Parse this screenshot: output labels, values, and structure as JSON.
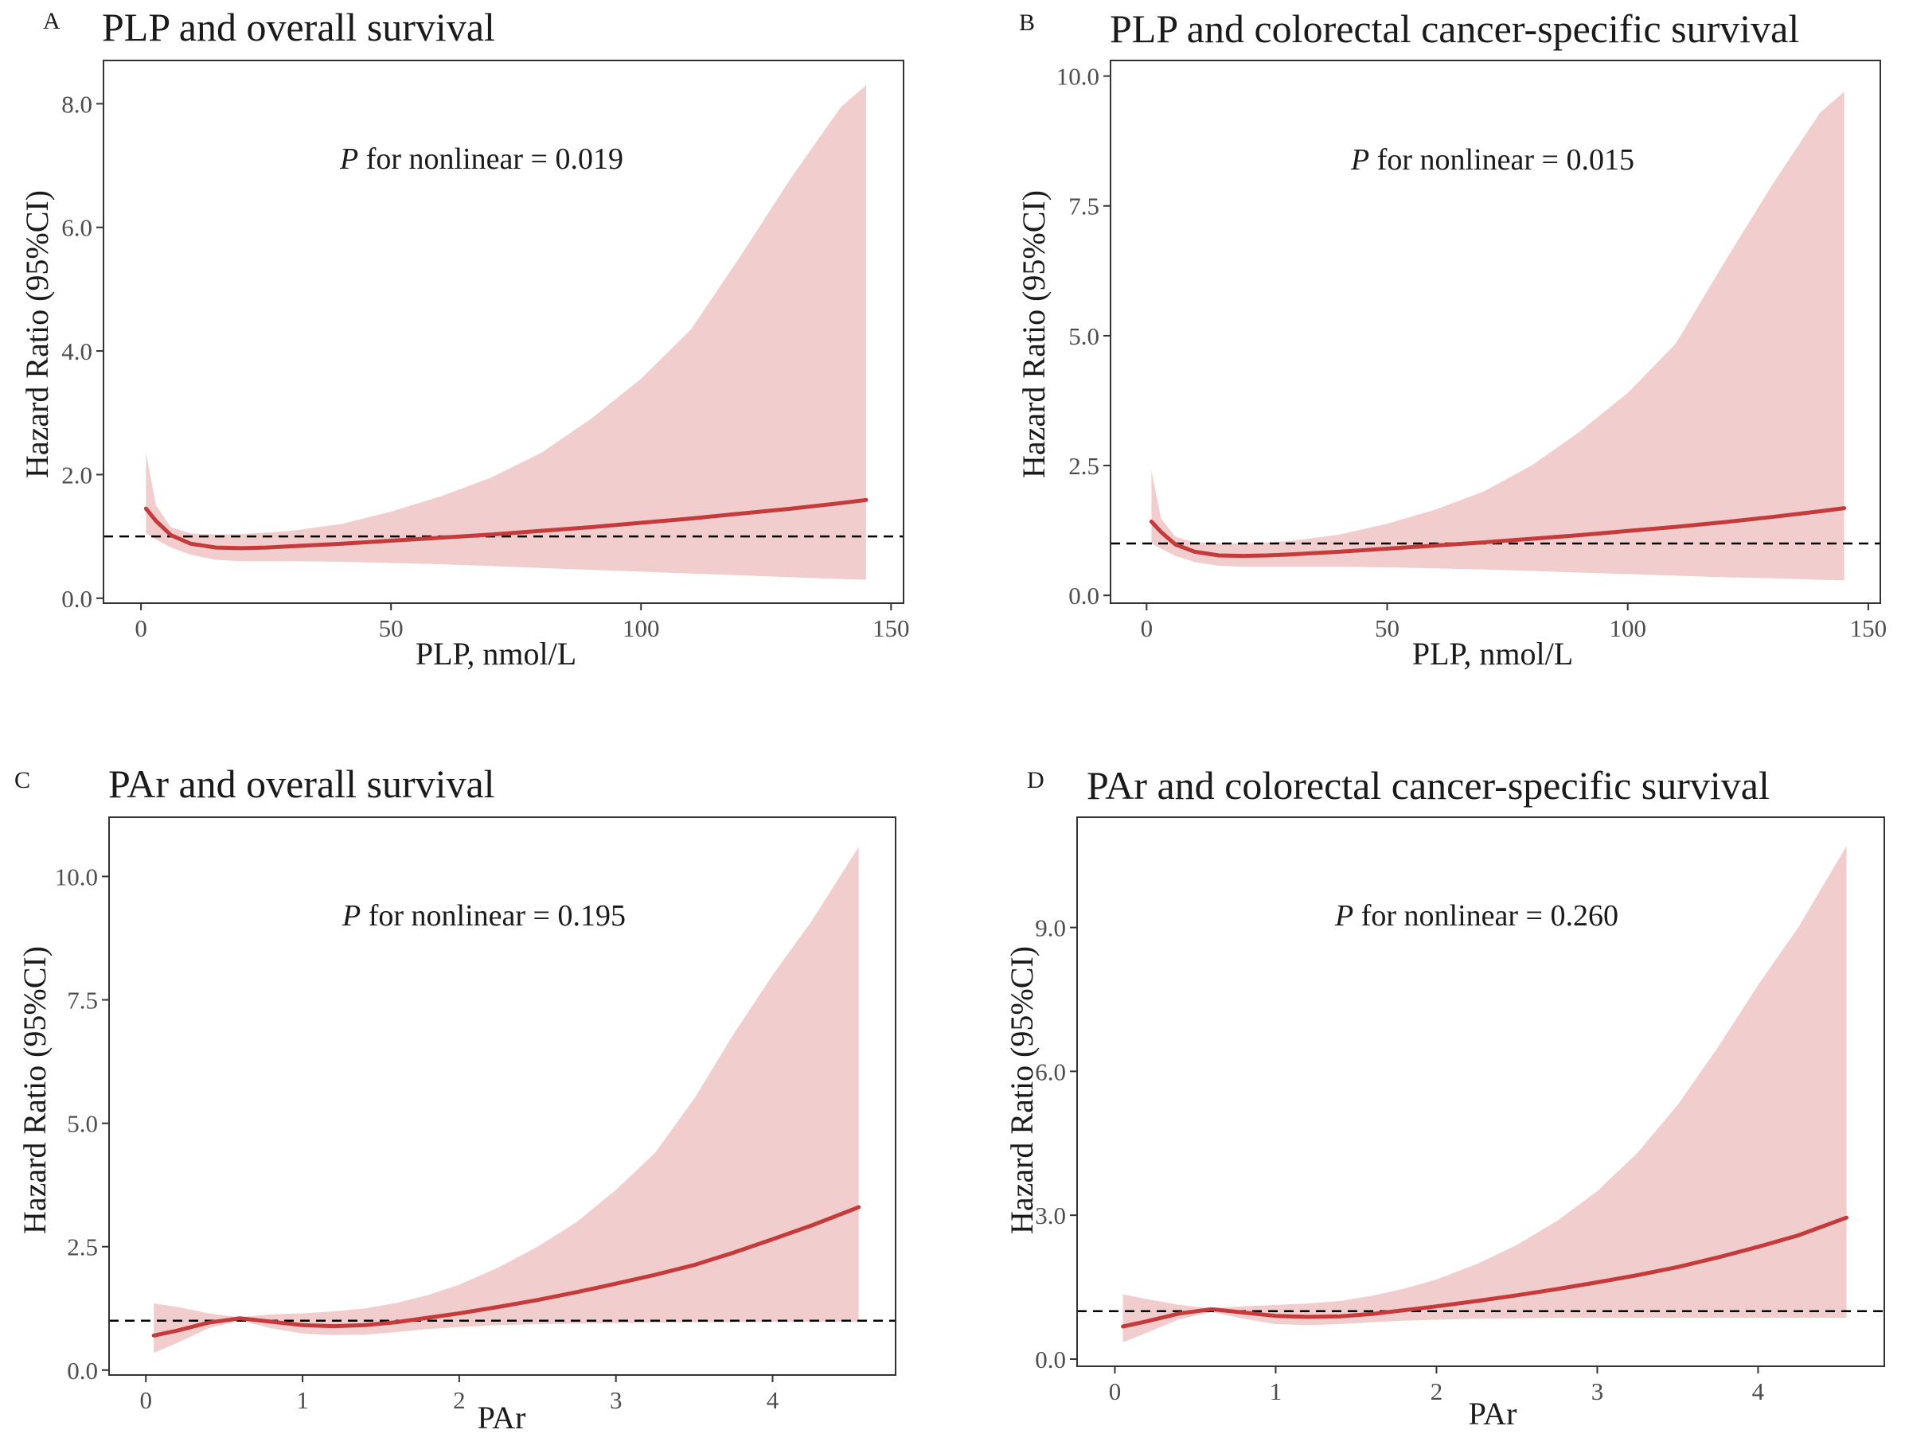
{
  "chart_data": [
    {
      "type": "line",
      "letter": "A",
      "title": "PLP and overall survival",
      "xlabel": "PLP, nmol/L",
      "ylabel": "Hazard Ratio (95%CI)",
      "xlim": [
        -7.5,
        152.5
      ],
      "ylim": [
        -0.08,
        8.7
      ],
      "xticks": [
        0,
        50,
        100,
        150
      ],
      "xtick_labels": [
        "0",
        "50",
        "100",
        "150"
      ],
      "yticks": [
        0,
        2,
        4,
        6,
        8
      ],
      "ytick_labels": [
        "0.0",
        "2.0",
        "4.0",
        "6.0",
        "8.0"
      ],
      "reference_line": 1.0,
      "annotation": {
        "p": "P",
        "text": " for nonlinear = 0.019"
      },
      "series": [
        {
          "name": "HR",
          "x": [
            1,
            3,
            6,
            10,
            15,
            20,
            25,
            30,
            40,
            50,
            60,
            70,
            80,
            90,
            100,
            110,
            120,
            130,
            140,
            145
          ],
          "y": [
            1.45,
            1.25,
            1.02,
            0.88,
            0.82,
            0.81,
            0.82,
            0.84,
            0.88,
            0.93,
            0.98,
            1.03,
            1.09,
            1.15,
            1.22,
            1.29,
            1.37,
            1.45,
            1.54,
            1.59
          ],
          "lower": [
            1.05,
            0.95,
            0.82,
            0.7,
            0.62,
            0.6,
            0.6,
            0.6,
            0.59,
            0.57,
            0.55,
            0.52,
            0.49,
            0.46,
            0.43,
            0.4,
            0.37,
            0.34,
            0.31,
            0.3
          ],
          "upper": [
            2.35,
            1.5,
            1.15,
            1.05,
            1.03,
            1.04,
            1.06,
            1.09,
            1.2,
            1.4,
            1.65,
            1.95,
            2.35,
            2.9,
            3.55,
            4.35,
            5.55,
            6.8,
            7.95,
            8.3
          ]
        }
      ]
    },
    {
      "type": "line",
      "letter": "B",
      "title": "PLP and colorectal cancer-specific survival",
      "xlabel": "PLP, nmol/L",
      "ylabel": "Hazard Ratio (95%CI)",
      "xlim": [
        -7.5,
        152.5
      ],
      "ylim": [
        -0.15,
        10.3
      ],
      "xticks": [
        0,
        50,
        100,
        150
      ],
      "xtick_labels": [
        "0",
        "50",
        "100",
        "150"
      ],
      "yticks": [
        0,
        2.5,
        5,
        7.5,
        10
      ],
      "ytick_labels": [
        "0.0",
        "2.5",
        "5.0",
        "7.5",
        "10.0"
      ],
      "reference_line": 1.0,
      "annotation": {
        "p": "P",
        "text": " for nonlinear = 0.015"
      },
      "series": [
        {
          "name": "HR",
          "x": [
            1,
            3,
            6,
            10,
            15,
            20,
            25,
            30,
            40,
            50,
            60,
            70,
            80,
            90,
            100,
            110,
            120,
            130,
            140,
            145
          ],
          "y": [
            1.42,
            1.22,
            0.98,
            0.84,
            0.77,
            0.76,
            0.77,
            0.79,
            0.84,
            0.9,
            0.96,
            1.02,
            1.09,
            1.16,
            1.24,
            1.32,
            1.41,
            1.51,
            1.62,
            1.68
          ],
          "lower": [
            1.0,
            0.9,
            0.76,
            0.64,
            0.57,
            0.55,
            0.55,
            0.55,
            0.55,
            0.54,
            0.52,
            0.5,
            0.47,
            0.44,
            0.41,
            0.38,
            0.35,
            0.33,
            0.3,
            0.29
          ],
          "upper": [
            2.4,
            1.48,
            1.13,
            1.02,
            1.0,
            1.0,
            1.02,
            1.05,
            1.17,
            1.38,
            1.65,
            2.0,
            2.5,
            3.15,
            3.9,
            4.85,
            6.4,
            7.9,
            9.3,
            9.7
          ]
        }
      ]
    },
    {
      "type": "line",
      "letter": "C",
      "title": "PAr and overall survival",
      "xlabel": "PAr",
      "ylabel": "Hazard Ratio (95%CI)",
      "xlim": [
        -0.235,
        4.785
      ],
      "ylim": [
        -0.1,
        11.2
      ],
      "xticks": [
        0,
        1,
        2,
        3,
        4
      ],
      "xtick_labels": [
        "0",
        "1",
        "2",
        "3",
        "4"
      ],
      "yticks": [
        0,
        2.5,
        5,
        7.5,
        10
      ],
      "ytick_labels": [
        "0.0",
        "2.5",
        "5.0",
        "7.5",
        "10.0"
      ],
      "reference_line": 1.0,
      "annotation": {
        "p": "P",
        "text": " for nonlinear = 0.195"
      },
      "series": [
        {
          "name": "HR",
          "x": [
            0.05,
            0.2,
            0.4,
            0.6,
            0.8,
            1.0,
            1.2,
            1.4,
            1.6,
            1.8,
            2.0,
            2.25,
            2.5,
            2.75,
            3.0,
            3.25,
            3.5,
            3.75,
            4.0,
            4.25,
            4.55
          ],
          "y": [
            0.7,
            0.8,
            0.96,
            1.05,
            0.98,
            0.91,
            0.89,
            0.91,
            0.97,
            1.06,
            1.15,
            1.28,
            1.42,
            1.58,
            1.75,
            1.93,
            2.13,
            2.38,
            2.65,
            2.93,
            3.3
          ],
          "lower": [
            0.35,
            0.55,
            0.85,
            1.0,
            0.85,
            0.74,
            0.71,
            0.72,
            0.77,
            0.83,
            0.87,
            0.91,
            0.93,
            0.94,
            0.95,
            0.96,
            0.97,
            0.97,
            0.98,
            0.98,
            0.98
          ],
          "upper": [
            1.35,
            1.28,
            1.15,
            1.07,
            1.13,
            1.15,
            1.19,
            1.25,
            1.36,
            1.52,
            1.73,
            2.08,
            2.5,
            3.0,
            3.65,
            4.4,
            5.5,
            6.8,
            8.0,
            9.1,
            10.6
          ]
        }
      ]
    },
    {
      "type": "line",
      "letter": "D",
      "title": "PAr and colorectal cancer-specific survival",
      "xlabel": "PAr",
      "ylabel": "Hazard Ratio (95%CI)",
      "xlim": [
        -0.235,
        4.785
      ],
      "ylim": [
        -0.15,
        11.3
      ],
      "xticks": [
        0,
        1,
        2,
        3,
        4
      ],
      "xtick_labels": [
        "0",
        "1",
        "2",
        "3",
        "4"
      ],
      "yticks": [
        0,
        3,
        6,
        9
      ],
      "ytick_labels": [
        "0.0",
        "3.0",
        "6.0",
        "9.0"
      ],
      "reference_line": 1.0,
      "annotation": {
        "p": "P",
        "text": " for nonlinear = 0.260"
      },
      "series": [
        {
          "name": "HR",
          "x": [
            0.05,
            0.2,
            0.4,
            0.6,
            0.8,
            1.0,
            1.2,
            1.4,
            1.6,
            1.8,
            2.0,
            2.25,
            2.5,
            2.75,
            3.0,
            3.25,
            3.5,
            3.75,
            4.0,
            4.25,
            4.55
          ],
          "y": [
            0.68,
            0.79,
            0.95,
            1.04,
            0.97,
            0.9,
            0.88,
            0.89,
            0.94,
            1.02,
            1.1,
            1.21,
            1.33,
            1.46,
            1.6,
            1.75,
            1.92,
            2.12,
            2.34,
            2.58,
            2.95
          ],
          "lower": [
            0.35,
            0.55,
            0.83,
            0.98,
            0.84,
            0.73,
            0.71,
            0.73,
            0.77,
            0.8,
            0.82,
            0.84,
            0.85,
            0.86,
            0.86,
            0.86,
            0.86,
            0.86,
            0.86,
            0.86,
            0.86
          ],
          "upper": [
            1.35,
            1.25,
            1.13,
            1.06,
            1.1,
            1.13,
            1.16,
            1.21,
            1.32,
            1.47,
            1.66,
            1.98,
            2.38,
            2.88,
            3.5,
            4.3,
            5.3,
            6.5,
            7.8,
            9.0,
            10.7
          ]
        }
      ]
    }
  ]
}
